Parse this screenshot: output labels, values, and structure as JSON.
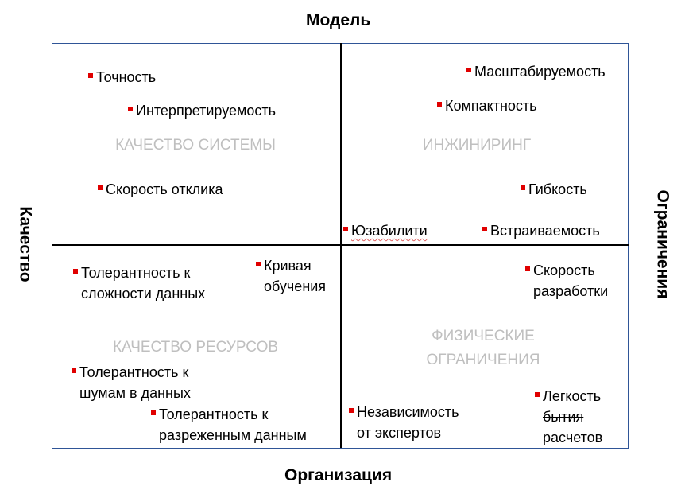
{
  "axes": {
    "top": "Модель",
    "bottom": "Организация",
    "left": "Качество",
    "right": "Ограничения"
  },
  "quadrants": {
    "top_left": [
      "КАЧЕСТВО СИСТЕМЫ"
    ],
    "top_right": [
      "ИНЖИНИРИНГ"
    ],
    "bottom_left": [
      "КАЧЕСТВО РЕСУРСОВ"
    ],
    "bottom_right": [
      "ФИЗИЧЕСКИЕ",
      "ОГРАНИЧЕНИЯ"
    ]
  },
  "items": [
    {
      "lines": [
        "Точность"
      ]
    },
    {
      "lines": [
        "Интерпретируемость"
      ]
    },
    {
      "lines": [
        "Скорость отклика"
      ]
    },
    {
      "lines": [
        "Масштабируемость"
      ]
    },
    {
      "lines": [
        "Компактность"
      ]
    },
    {
      "lines": [
        "Гибкость"
      ]
    },
    {
      "lines": [
        "Юзабилити"
      ]
    },
    {
      "lines": [
        "Встраиваемость"
      ]
    },
    {
      "lines": [
        "Толерантность к",
        "сложности данных"
      ]
    },
    {
      "lines": [
        "Кривая",
        "обучения"
      ]
    },
    {
      "lines": [
        "Скорость",
        "разработки"
      ]
    },
    {
      "lines": [
        "Толерантность к",
        "шумам в данных"
      ]
    },
    {
      "lines": [
        "Толерантность к",
        "разреженным данным"
      ]
    },
    {
      "lines": [
        "Независимость",
        "от экспертов"
      ]
    },
    {
      "lines": [
        "Легкость",
        "бытия",
        "расчетов"
      ],
      "struck_line": "бытия"
    }
  ],
  "colors": {
    "marker": "#e00000",
    "quadrant_label": "#bfbfbf",
    "border": "#2f5597"
  }
}
